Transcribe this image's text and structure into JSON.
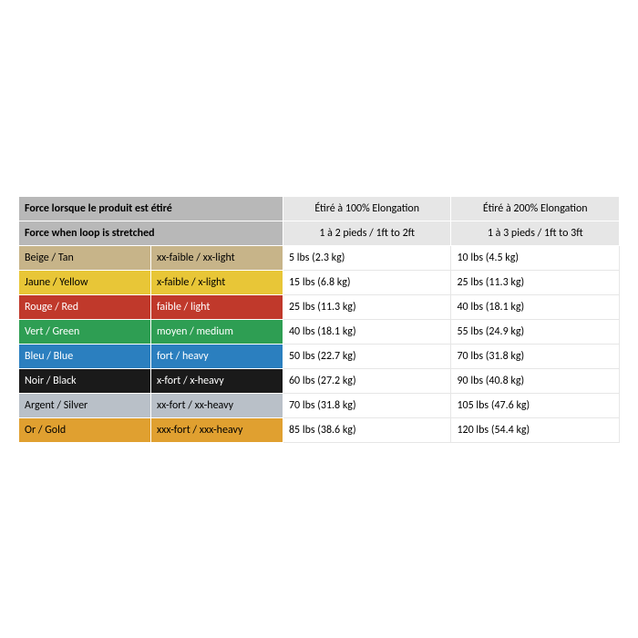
{
  "header": {
    "title_fr": "Force lorsque le produit est étiré",
    "title_en": "Force when loop is stretched",
    "col1_fr": "Étiré à 100% Elongation",
    "col1_en": "1 à 2 pieds / 1ft to 2ft",
    "col2_fr": "Étiré à 200% Elongation",
    "col2_en": "1 à 3 pieds / 1ft to 3ft"
  },
  "columns": {
    "col0_width": "22%",
    "col1_width": "22%",
    "col2_width": "28%",
    "col3_width": "28%"
  },
  "rows": [
    {
      "name": "Beige / Tan",
      "level": "xx-faible / xx-light",
      "v100": "5 lbs (2.3 kg)",
      "v200": "10 lbs (4.5 kg)",
      "bg": "#c7b489",
      "text_dark": true
    },
    {
      "name": "Jaune / Yellow",
      "level": "x-faible / x-light",
      "v100": "15 lbs (6.8 kg)",
      "v200": "25 lbs (11.3 kg)",
      "bg": "#e8c637",
      "text_dark": true
    },
    {
      "name": "Rouge / Red",
      "level": "faible / light",
      "v100": "25 lbs (11.3 kg)",
      "v200": "40 lbs (18.1 kg)",
      "bg": "#c0392b",
      "text_dark": false
    },
    {
      "name": "Vert / Green",
      "level": "moyen / medium",
      "v100": "40 lbs (18.1 kg)",
      "v200": "55 lbs (24.9 kg)",
      "bg": "#2e9e53",
      "text_dark": false
    },
    {
      "name": "Bleu / Blue",
      "level": "fort / heavy",
      "v100": "50 lbs (22.7 kg)",
      "v200": "70 lbs (31.8 kg)",
      "bg": "#2b7fbf",
      "text_dark": false
    },
    {
      "name": "Noir / Black",
      "level": "x-fort / x-heavy",
      "v100": "60 lbs (27.2 kg)",
      "v200": "90 lbs (40.8 kg)",
      "bg": "#1a1a1a",
      "text_dark": false
    },
    {
      "name": "Argent / Silver",
      "level": "xx-fort / xx-heavy",
      "v100": "70 lbs (31.8 kg)",
      "v200": "105 lbs (47.6 kg)",
      "bg": "#b9c0c8",
      "text_dark": true
    },
    {
      "name": "Or / Gold",
      "level": "xxx-fort / xxx-heavy",
      "v100": "85 lbs (38.6 kg)",
      "v200": "120 lbs (54.4 kg)",
      "bg": "#e0a030",
      "text_dark": true
    }
  ]
}
